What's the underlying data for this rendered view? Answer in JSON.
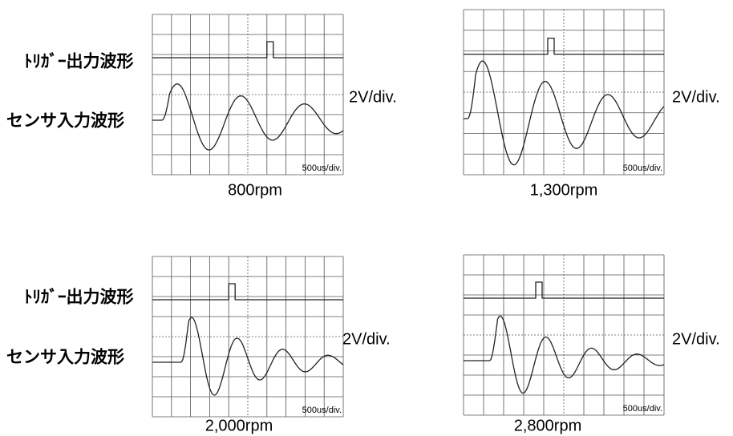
{
  "rows": [
    {
      "trigger_label": "ﾄﾘｶﾞｰ出力波形",
      "sensor_label": "センサ入力波形"
    },
    {
      "trigger_label": "ﾄﾘｶﾞｰ出力波形",
      "sensor_label": "センサ入力波形"
    }
  ],
  "panels": [
    {
      "caption": "800rpm",
      "volt_div": "2V/div.",
      "time_div": "500us/div."
    },
    {
      "caption": "1,300rpm",
      "volt_div": "2V/div.",
      "time_div": "500us/div."
    },
    {
      "caption": "2,000rpm",
      "volt_div": "2V/div.",
      "time_div": "500us/div."
    },
    {
      "caption": "2,800rpm",
      "volt_div": "2V/div.",
      "time_div": "500us/div."
    }
  ]
}
